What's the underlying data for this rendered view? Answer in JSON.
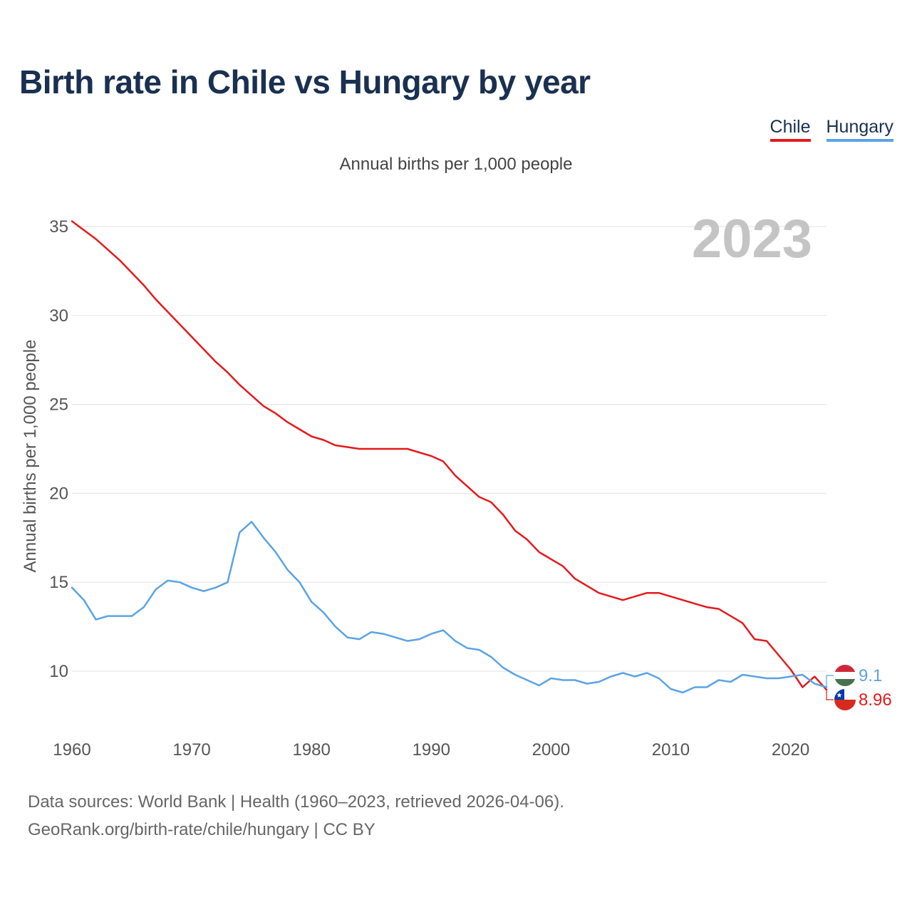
{
  "title": "Birth rate in Chile vs Hungary by year",
  "legend": [
    {
      "label": "Chile",
      "color": "#e31a1c"
    },
    {
      "label": "Hungary",
      "color": "#5ba3e4"
    }
  ],
  "subtitle": "Annual births per 1,000 people",
  "year_badge": "2023",
  "footer": {
    "line1": "Data sources: World Bank | Health (1960–2023, retrieved 2026-04-06).",
    "line2": "GeoRank.org/birth-rate/chile/hungary | CC BY"
  },
  "chart_data": {
    "type": "line",
    "title": "Birth rate in Chile vs Hungary by year",
    "xlabel": "",
    "ylabel": "Annual births per 1,000 people",
    "xlim": [
      1960,
      2023
    ],
    "ylim": [
      7.5,
      36.5
    ],
    "yticks": [
      10,
      15,
      20,
      25,
      30,
      35
    ],
    "xticks": [
      1960,
      1970,
      1980,
      1990,
      2000,
      2010,
      2020
    ],
    "x": [
      1960,
      1961,
      1962,
      1963,
      1964,
      1965,
      1966,
      1967,
      1968,
      1969,
      1970,
      1971,
      1972,
      1973,
      1974,
      1975,
      1976,
      1977,
      1978,
      1979,
      1980,
      1981,
      1982,
      1983,
      1984,
      1985,
      1986,
      1987,
      1988,
      1989,
      1990,
      1991,
      1992,
      1993,
      1994,
      1995,
      1996,
      1997,
      1998,
      1999,
      2000,
      2001,
      2002,
      2003,
      2004,
      2005,
      2006,
      2007,
      2008,
      2009,
      2010,
      2011,
      2012,
      2013,
      2014,
      2015,
      2016,
      2017,
      2018,
      2019,
      2020,
      2021,
      2022,
      2023
    ],
    "series": [
      {
        "name": "Chile",
        "color": "#e31a1c",
        "end_label": "8.96",
        "values": [
          35.3,
          34.8,
          34.3,
          33.7,
          33.1,
          32.4,
          31.7,
          30.9,
          30.2,
          29.5,
          28.8,
          28.1,
          27.4,
          26.8,
          26.1,
          25.5,
          24.9,
          24.5,
          24.0,
          23.6,
          23.2,
          23.0,
          22.7,
          22.6,
          22.5,
          22.5,
          22.5,
          22.5,
          22.5,
          22.3,
          22.1,
          21.8,
          21.0,
          20.4,
          19.8,
          19.5,
          18.8,
          17.9,
          17.4,
          16.7,
          16.3,
          15.9,
          15.2,
          14.8,
          14.4,
          14.2,
          14.0,
          14.2,
          14.4,
          14.4,
          14.2,
          14.0,
          13.8,
          13.6,
          13.5,
          13.1,
          12.7,
          11.8,
          11.7,
          10.9,
          10.1,
          9.1,
          9.7,
          8.96
        ]
      },
      {
        "name": "Hungary",
        "color": "#5ba3e4",
        "end_label": "9.1",
        "values": [
          14.7,
          14.0,
          12.9,
          13.1,
          13.1,
          13.1,
          13.6,
          14.6,
          15.1,
          15.0,
          14.7,
          14.5,
          14.7,
          15.0,
          17.8,
          18.4,
          17.5,
          16.7,
          15.7,
          15.0,
          13.9,
          13.3,
          12.5,
          11.9,
          11.8,
          12.2,
          12.1,
          11.9,
          11.7,
          11.8,
          12.1,
          12.3,
          11.7,
          11.3,
          11.2,
          10.8,
          10.2,
          9.8,
          9.5,
          9.2,
          9.6,
          9.5,
          9.5,
          9.3,
          9.4,
          9.7,
          9.9,
          9.7,
          9.9,
          9.6,
          9.0,
          8.8,
          9.1,
          9.1,
          9.5,
          9.4,
          9.8,
          9.7,
          9.6,
          9.6,
          9.7,
          9.8,
          9.3,
          9.1
        ]
      }
    ]
  }
}
